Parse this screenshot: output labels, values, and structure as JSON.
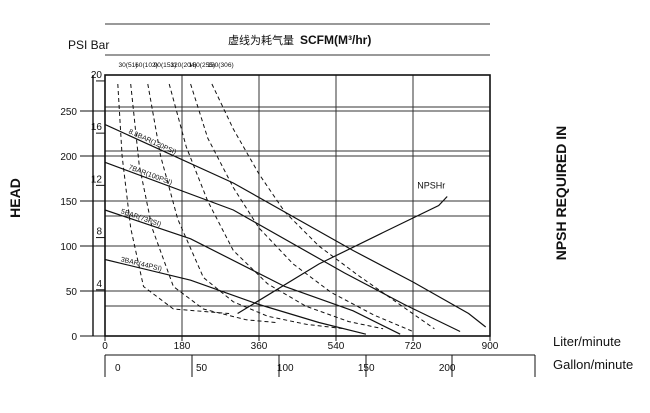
{
  "chart_data": {
    "type": "line",
    "title": "虚线为耗气量",
    "subtitle": "SCFM(M³/hr)",
    "y_unit_left": "PSI Bar",
    "xlabel_bottom_1": "Liter/minute",
    "xlabel_bottom_2": "Gallon/minute",
    "ylabel_left": "HEAD",
    "ylabel_right": "NPSH REQUIRED IN",
    "xlim": [
      0,
      900
    ],
    "ylim_psi": [
      0,
      290
    ],
    "x_ticks_lpm": [
      "0",
      "180",
      "360",
      "540",
      "720",
      "900"
    ],
    "x_ticks_gpm": [
      "0",
      "50",
      "100",
      "150",
      "200"
    ],
    "y_ticks_psi": [
      "0",
      "50",
      "100",
      "150",
      "200",
      "250"
    ],
    "y_ticks_bar": [
      "20",
      "16",
      "12",
      "8",
      "4"
    ],
    "air_ticks": [
      "30(51)",
      "60(102)",
      "90(153)",
      "120(204)",
      "150(255)",
      "180(306)"
    ],
    "grid": true,
    "series": [
      {
        "name": "8.3BAR(120PSI)",
        "x": [
          0,
          300,
          580,
          720,
          850,
          890
        ],
        "y": [
          235,
          170,
          95,
          60,
          25,
          10
        ]
      },
      {
        "name": "7BAR(100PSI)",
        "x": [
          0,
          300,
          560,
          700,
          830
        ],
        "y": [
          193,
          140,
          70,
          35,
          5
        ]
      },
      {
        "name": "5BAR(73PSI)",
        "x": [
          0,
          200,
          420,
          580,
          690
        ],
        "y": [
          140,
          108,
          55,
          28,
          2
        ]
      },
      {
        "name": "3BAR(44PSI)",
        "x": [
          0,
          200,
          360,
          500,
          610
        ],
        "y": [
          85,
          62,
          35,
          15,
          2
        ]
      },
      {
        "name": "NPSHr",
        "x": [
          310,
          500,
          650,
          780,
          800
        ],
        "y": [
          25,
          80,
          115,
          145,
          155
        ]
      }
    ],
    "air_curves": [
      {
        "x": [
          30,
          40,
          60,
          90,
          160,
          290
        ],
        "y": [
          280,
          200,
          120,
          55,
          30,
          25
        ]
      },
      {
        "x": [
          60,
          80,
          110,
          160,
          230,
          330,
          400
        ],
        "y": [
          280,
          190,
          120,
          55,
          30,
          18,
          15
        ]
      },
      {
        "x": [
          100,
          130,
          170,
          230,
          300,
          380,
          470,
          560
        ],
        "y": [
          280,
          200,
          130,
          65,
          38,
          22,
          13,
          8
        ]
      },
      {
        "x": [
          150,
          190,
          240,
          300,
          380,
          470,
          570,
          650
        ],
        "y": [
          280,
          210,
          150,
          95,
          58,
          33,
          16,
          8
        ]
      },
      {
        "x": [
          200,
          240,
          300,
          360,
          440,
          530,
          630,
          720
        ],
        "y": [
          280,
          220,
          165,
          120,
          80,
          48,
          23,
          5
        ]
      },
      {
        "x": [
          250,
          300,
          360,
          420,
          500,
          590,
          680,
          770
        ],
        "y": [
          280,
          230,
          180,
          138,
          100,
          68,
          38,
          8
        ]
      }
    ]
  }
}
